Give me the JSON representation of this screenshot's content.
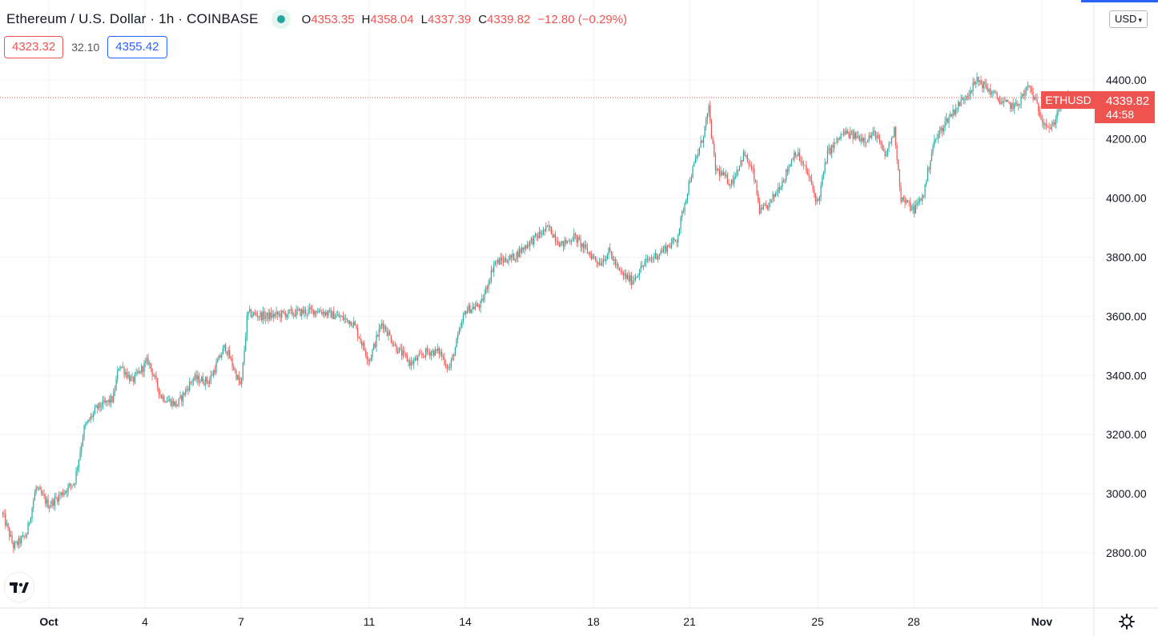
{
  "legend": {
    "symbol": "Ethereum / U.S. Dollar · 1h · COINBASE",
    "open_label": "O",
    "open": "4353.35",
    "high_label": "H",
    "high": "4358.04",
    "low_label": "L",
    "low": "4337.39",
    "close_label": "C",
    "close": "4339.82",
    "change": "−12.80 (−0.29%)"
  },
  "quote": {
    "bid": "4323.32",
    "spread": "32.10",
    "ask": "4355.42"
  },
  "currency": "USD",
  "last_price_tag": {
    "ticker": "ETHUSD",
    "price": "4339.82",
    "countdown": "44:58"
  },
  "colors": {
    "up": "#26a69a",
    "down": "#ef5350",
    "ask": "#2962ff",
    "grid": "#f0f3fa",
    "axis_line": "#e0e3eb"
  },
  "icons": {
    "logo": "tradingview-logo-icon",
    "settings": "gear-icon",
    "live": "live-dot-icon",
    "dropdown": "chevron-down-icon"
  },
  "chart_data": {
    "type": "candlestick",
    "ylim": [
      2650,
      4480
    ],
    "y_ticks": [
      "2800.00",
      "3000.00",
      "3200.00",
      "3400.00",
      "3600.00",
      "3800.00",
      "4000.00",
      "4200.00",
      "4400.00"
    ],
    "y_tick_values": [
      2800,
      3000,
      3200,
      3400,
      3600,
      3800,
      4000,
      4200,
      4400
    ],
    "x_ticks": [
      "Oct",
      "4",
      "7",
      "11",
      "14",
      "18",
      "21",
      "25",
      "28",
      "Nov"
    ],
    "x_tick_days": [
      1,
      4,
      7,
      11,
      14,
      18,
      21,
      25,
      28,
      32
    ],
    "last_price": 4339.82,
    "x_start_day": -0.44,
    "x_end_day": 33.0,
    "anchors": [
      [
        -0.44,
        2930
      ],
      [
        -0.1,
        2820
      ],
      [
        0.3,
        2860
      ],
      [
        0.6,
        3020
      ],
      [
        1.0,
        2960
      ],
      [
        1.4,
        3000
      ],
      [
        1.8,
        3040
      ],
      [
        2.1,
        3220
      ],
      [
        2.5,
        3290
      ],
      [
        3.0,
        3320
      ],
      [
        3.2,
        3440
      ],
      [
        3.6,
        3380
      ],
      [
        4.1,
        3450
      ],
      [
        4.5,
        3330
      ],
      [
        5.0,
        3300
      ],
      [
        5.5,
        3390
      ],
      [
        6.0,
        3380
      ],
      [
        6.5,
        3500
      ],
      [
        7.0,
        3360
      ],
      [
        7.2,
        3610
      ],
      [
        7.8,
        3600
      ],
      [
        8.5,
        3610
      ],
      [
        9.4,
        3620
      ],
      [
        10.0,
        3600
      ],
      [
        10.5,
        3580
      ],
      [
        11.0,
        3450
      ],
      [
        11.4,
        3580
      ],
      [
        11.8,
        3500
      ],
      [
        12.3,
        3440
      ],
      [
        12.8,
        3480
      ],
      [
        13.2,
        3480
      ],
      [
        13.5,
        3420
      ],
      [
        14.0,
        3620
      ],
      [
        14.5,
        3640
      ],
      [
        14.9,
        3780
      ],
      [
        15.5,
        3800
      ],
      [
        16.0,
        3850
      ],
      [
        16.6,
        3900
      ],
      [
        17.0,
        3840
      ],
      [
        17.4,
        3870
      ],
      [
        17.8,
        3820
      ],
      [
        18.2,
        3780
      ],
      [
        18.5,
        3820
      ],
      [
        18.8,
        3750
      ],
      [
        19.2,
        3720
      ],
      [
        19.6,
        3780
      ],
      [
        20.0,
        3810
      ],
      [
        20.6,
        3860
      ],
      [
        21.0,
        4060
      ],
      [
        21.4,
        4200
      ],
      [
        21.6,
        4300
      ],
      [
        21.8,
        4100
      ],
      [
        22.3,
        4050
      ],
      [
        22.7,
        4150
      ],
      [
        23.0,
        4080
      ],
      [
        23.2,
        3950
      ],
      [
        23.5,
        3980
      ],
      [
        24.0,
        4080
      ],
      [
        24.3,
        4160
      ],
      [
        24.7,
        4080
      ],
      [
        25.0,
        3980
      ],
      [
        25.3,
        4150
      ],
      [
        25.8,
        4220
      ],
      [
        26.5,
        4200
      ],
      [
        26.8,
        4220
      ],
      [
        27.1,
        4140
      ],
      [
        27.4,
        4230
      ],
      [
        27.6,
        4000
      ],
      [
        28.0,
        3960
      ],
      [
        28.3,
        4010
      ],
      [
        28.6,
        4180
      ],
      [
        29.0,
        4260
      ],
      [
        29.5,
        4330
      ],
      [
        30.0,
        4400
      ],
      [
        30.4,
        4360
      ],
      [
        30.8,
        4320
      ],
      [
        31.2,
        4310
      ],
      [
        31.6,
        4380
      ],
      [
        32.0,
        4270
      ],
      [
        32.3,
        4230
      ],
      [
        32.6,
        4330
      ],
      [
        32.8,
        4340
      ]
    ]
  }
}
